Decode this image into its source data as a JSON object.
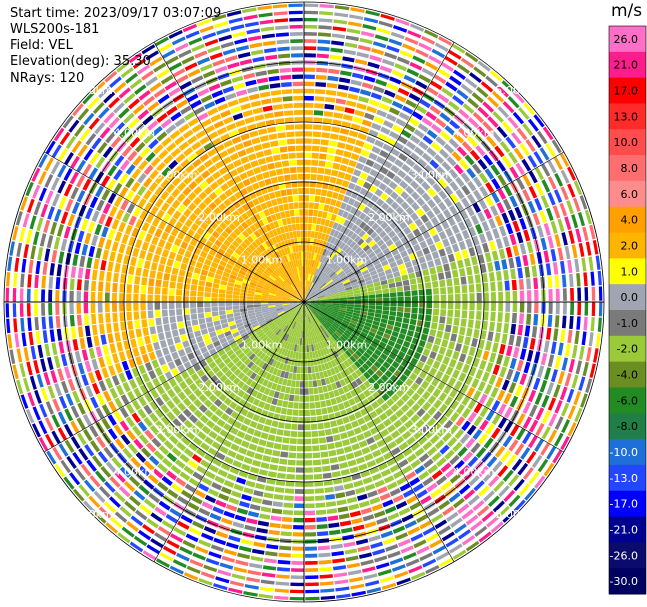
{
  "header": {
    "start_time": "Start time: 2023/09/17 03:07:09",
    "instrument": "WLS200s-181",
    "field": "Field: VEL",
    "elevation": "Elevation(deg): 35.30",
    "nrays": "NRays: 120"
  },
  "chart_data": {
    "type": "heatmap",
    "subtype": "polar-ppi-radial-velocity",
    "n_rays": 120,
    "range_rings_km": [
      1.0,
      2.0,
      3.0,
      4.0,
      5.0
    ],
    "range_ring_labels": [
      "1.00km",
      "2.00km",
      "3.00km",
      "4.00km",
      "5.00km"
    ],
    "radial_lines_deg": [
      0,
      30,
      60,
      90,
      120,
      150,
      180,
      210,
      240,
      270,
      300,
      330
    ],
    "max_range_km": 5.0,
    "colorbar": {
      "unit": "m/s",
      "ticks": [
        "26.0",
        "21.0",
        "17.0",
        "13.0",
        "10.0",
        "8.0",
        "6.0",
        "4.0",
        "2.0",
        "1.0",
        "0.0",
        "-1.0",
        "-2.0",
        "-4.0",
        "-6.0",
        "-8.0",
        "-10.0",
        "-13.0",
        "-17.0",
        "-21.0",
        "-26.0",
        "-30.0"
      ],
      "colors": [
        "#ff6fc8",
        "#ff1c8c",
        "#ff0000",
        "#ff2a2a",
        "#ff4d4d",
        "#ff6e6e",
        "#ff8c8c",
        "#ffa000",
        "#ffb400",
        "#ffff00",
        "#9fa6b1",
        "#7a7a7a",
        "#9ac93a",
        "#6b8e23",
        "#228b22",
        "#1f7f46",
        "#1e6fd9",
        "#2347ff",
        "#0000ff",
        "#000090",
        "#0b0b6e",
        "#000060"
      ]
    },
    "regions": [
      {
        "az_from": 210,
        "az_to": 330,
        "r_to_km": 3.0,
        "value": 4.0,
        "note": "orange core north-west"
      },
      {
        "az_from": 200,
        "az_to": 350,
        "r_to_km": 3.6,
        "value": 2.0
      },
      {
        "az_from": 350,
        "az_to": 20,
        "r_to_km": 3.6,
        "value": 2.0
      },
      {
        "az_from": 20,
        "az_to": 75,
        "r_to_km": 3.6,
        "value": 0.0
      },
      {
        "az_from": 75,
        "az_to": 150,
        "r_to_km": 3.6,
        "value": -2.0
      },
      {
        "az_from": 85,
        "az_to": 140,
        "r_to_km": 2.2,
        "value": -6.0
      },
      {
        "az_from": 150,
        "az_to": 250,
        "r_to_km": 3.6,
        "value": -2.0
      },
      {
        "az_from": 240,
        "az_to": 270,
        "r_to_km": 2.6,
        "value": 0.0
      },
      {
        "az_from": 0,
        "az_to": 360,
        "r_from_km": 3.6,
        "r_to_km": 5.0,
        "value": "noise"
      }
    ]
  }
}
